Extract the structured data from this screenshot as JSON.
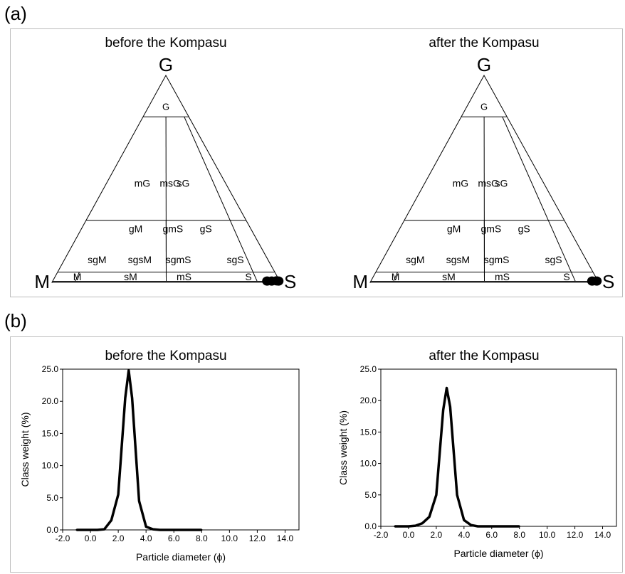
{
  "panels": {
    "a": "(a)",
    "b": "(b)"
  },
  "chart_data": [
    {
      "type": "ternary",
      "title": "before the Kompasu",
      "vertices": {
        "top": "G",
        "left": "M",
        "right": "S"
      },
      "region_labels": [
        "G",
        "mG",
        "msG",
        "sG",
        "gM",
        "gmS",
        "gS",
        "sgM",
        "sgsM",
        "sgmS",
        "sgS",
        "M",
        "sM",
        "mS",
        "S"
      ],
      "samples": [
        {
          "gravel_pct": 0.3,
          "sand_pct": 94,
          "mud_pct": 5.7
        },
        {
          "gravel_pct": 0.3,
          "sand_pct": 96,
          "mud_pct": 3.7
        },
        {
          "gravel_pct": 0.4,
          "sand_pct": 98,
          "mud_pct": 1.6
        },
        {
          "gravel_pct": 0.3,
          "sand_pct": 99,
          "mud_pct": 0.7
        }
      ]
    },
    {
      "type": "ternary",
      "title": "after the Kompasu",
      "vertices": {
        "top": "G",
        "left": "M",
        "right": "S"
      },
      "region_labels": [
        "G",
        "mG",
        "msG",
        "sG",
        "gM",
        "gmS",
        "gS",
        "sgM",
        "sgsM",
        "sgmS",
        "sgS",
        "M",
        "sM",
        "mS",
        "S"
      ],
      "samples": [
        {
          "gravel_pct": 0.3,
          "sand_pct": 97,
          "mud_pct": 2.7
        },
        {
          "gravel_pct": 0.3,
          "sand_pct": 99,
          "mud_pct": 0.7
        }
      ]
    },
    {
      "type": "line",
      "title": "before the Kompasu",
      "xlabel": "Particle diameter (ϕ)",
      "ylabel": "Class weight (%)",
      "xlim": [
        -2.0,
        15.0
      ],
      "ylim": [
        0,
        25.0
      ],
      "xticks": [
        "-2.0",
        "0.0",
        "2.0",
        "4.0",
        "6.0",
        "8.0",
        "10.0",
        "12.0",
        "14.0"
      ],
      "yticks": [
        "0.0",
        "5.0",
        "10.0",
        "15.0",
        "20.0",
        "25.0"
      ],
      "series": [
        {
          "x": [
            -1.0,
            -0.5,
            0.0,
            0.5,
            1.0,
            1.5,
            2.0,
            2.5,
            2.75,
            3.0,
            3.5,
            4.0,
            4.5,
            5.0,
            5.5,
            6.0,
            6.5,
            7.0,
            7.5,
            8.0
          ],
          "y": [
            0,
            0,
            0,
            0,
            0.1,
            1.5,
            5.5,
            20.5,
            24.8,
            20.5,
            4.5,
            0.5,
            0.1,
            0,
            0,
            0,
            0,
            0,
            0,
            0
          ]
        }
      ]
    },
    {
      "type": "line",
      "title": "after the Kompasu",
      "xlabel": "Particle diameter (ϕ)",
      "ylabel": "Class weight (%)",
      "xlim": [
        -2.0,
        15.0
      ],
      "ylim": [
        0,
        25.0
      ],
      "xticks": [
        "-2.0",
        "0.0",
        "2.0",
        "4.0",
        "6.0",
        "8.0",
        "10.0",
        "12.0",
        "14.0"
      ],
      "yticks": [
        "0.0",
        "5.0",
        "10.0",
        "15.0",
        "20.0",
        "25.0"
      ],
      "series": [
        {
          "x": [
            -1.0,
            -0.5,
            0.0,
            0.5,
            1.0,
            1.5,
            2.0,
            2.5,
            2.75,
            3.0,
            3.5,
            4.0,
            4.5,
            5.0,
            5.5,
            6.0,
            6.5,
            7.0,
            7.5,
            8.0
          ],
          "y": [
            0,
            0,
            0,
            0.1,
            0.5,
            1.5,
            5.0,
            18.5,
            22.0,
            19.0,
            5.0,
            1.0,
            0.2,
            0,
            0,
            0,
            0,
            0,
            0,
            0
          ]
        }
      ]
    }
  ]
}
